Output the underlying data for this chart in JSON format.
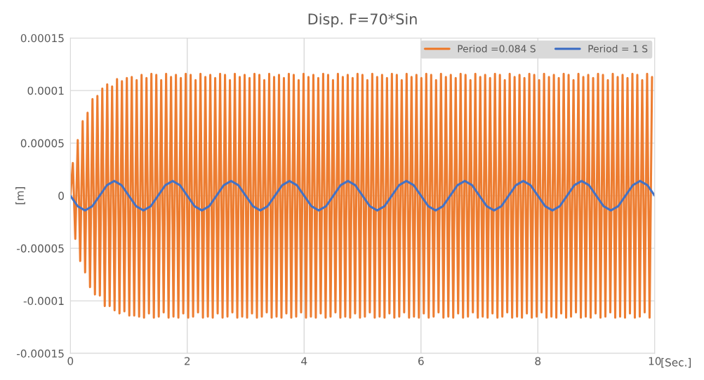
{
  "chart_data": {
    "type": "line",
    "title": "Disp. F=70*Sin",
    "xlabel": "[Sec.]",
    "ylabel": "[m]",
    "xlim": [
      0,
      10
    ],
    "xticks": [
      0,
      2,
      4,
      6,
      8,
      10
    ],
    "ylim": [
      -0.00015,
      0.00015
    ],
    "yticks": [
      {
        "value": -0.00015,
        "label": "-0.00015"
      },
      {
        "value": -0.0001,
        "label": "-0.0001"
      },
      {
        "value": -5e-05,
        "label": "-0.00005"
      },
      {
        "value": 0,
        "label": "0"
      },
      {
        "value": 5e-05,
        "label": "0.00005"
      },
      {
        "value": 0.0001,
        "label": "0.0001"
      },
      {
        "value": 0.00015,
        "label": "0.00015"
      }
    ],
    "grid": true,
    "legend": "top right",
    "marker": "none",
    "line_style": "solid",
    "series": [
      {
        "name": "Period =0.084 S",
        "color": "#ed7d31",
        "x": [
          0,
          0.042,
          0.084,
          0.126,
          0.168,
          0.21,
          0.252,
          0.294,
          0.336,
          0.378,
          0.42,
          0.462,
          0.504,
          0.546,
          0.588,
          0.63,
          0.672,
          0.714,
          0.756,
          0.798,
          0.84,
          0.882,
          0.924,
          0.966,
          1.008,
          1.05,
          1.092,
          1.134,
          1.176,
          1.218,
          1.26,
          1.302,
          1.344,
          1.386,
          1.428,
          1.47,
          1.512,
          1.554,
          1.596,
          1.638,
          1.68,
          1.722,
          1.764,
          1.806,
          1.848,
          1.89,
          1.932,
          1.974,
          2.016,
          2.058,
          2.1,
          2.142,
          2.184,
          2.226,
          2.268,
          2.31,
          2.352,
          2.394,
          2.436,
          2.478,
          2.52,
          2.562,
          2.604,
          2.646,
          2.688,
          2.73,
          2.772,
          2.814,
          2.856,
          2.898,
          2.94,
          2.982,
          3.024,
          3.066,
          3.108,
          3.15,
          3.192,
          3.234,
          3.276,
          3.318,
          3.36,
          3.402,
          3.444,
          3.486,
          3.528,
          3.57,
          3.612,
          3.654,
          3.696,
          3.738,
          3.78,
          3.822,
          3.864,
          3.906,
          3.948,
          3.99,
          4.032,
          4.074,
          4.116,
          4.158,
          4.2,
          4.242,
          4.284,
          4.326,
          4.368,
          4.41,
          4.452,
          4.494,
          4.536,
          4.578,
          4.62,
          4.662,
          4.704,
          4.746,
          4.788,
          4.83,
          4.872,
          4.914,
          4.956,
          4.998,
          5.04,
          5.082,
          5.124,
          5.166,
          5.208,
          5.25,
          5.292,
          5.334,
          5.376,
          5.418,
          5.46,
          5.502,
          5.544,
          5.586,
          5.628,
          5.67,
          5.712,
          5.754,
          5.796,
          5.838,
          5.88,
          5.922,
          5.964,
          6.006,
          6.048,
          6.09,
          6.132,
          6.174,
          6.216,
          6.258,
          6.3,
          6.342,
          6.384,
          6.426,
          6.468,
          6.51,
          6.552,
          6.594,
          6.636,
          6.678,
          6.72,
          6.762,
          6.804,
          6.846,
          6.888,
          6.93,
          6.972,
          7.014,
          7.056,
          7.098,
          7.14,
          7.182,
          7.224,
          7.266,
          7.308,
          7.35,
          7.392,
          7.434,
          7.476,
          7.518,
          7.56,
          7.602,
          7.644,
          7.686,
          7.728,
          7.77,
          7.812,
          7.854,
          7.896,
          7.938,
          7.98,
          8.022,
          8.064,
          8.106,
          8.148,
          8.19,
          8.232,
          8.274,
          8.316,
          8.358,
          8.4,
          8.442,
          8.484,
          8.526,
          8.568,
          8.61,
          8.652,
          8.694,
          8.736,
          8.778,
          8.82,
          8.862,
          8.904,
          8.946,
          8.988,
          9.03,
          9.072,
          9.114,
          9.156,
          9.198,
          9.24,
          9.282,
          9.324,
          9.366,
          9.408,
          9.45,
          9.492,
          9.534,
          9.576,
          9.618,
          9.66,
          9.702,
          9.744,
          9.786,
          9.828,
          9.87,
          9.912,
          9.954
        ],
        "values": [
          0,
          3.1e-05,
          -4.1e-05,
          5.3e-05,
          -6.2e-05,
          7.1e-05,
          -7.3e-05,
          7.9e-05,
          -8.7e-05,
          9.2e-05,
          -9.4e-05,
          9.5e-05,
          -9.5e-05,
          0.000102,
          -0.000105,
          0.000106,
          -0.000105,
          0.000104,
          -0.000109,
          0.000111,
          -0.000112,
          0.000109,
          -0.00011,
          0.000112,
          -0.000114,
          0.000113,
          -0.000114,
          0.00011,
          -0.000115,
          0.000115,
          -0.000116,
          0.000112,
          -0.000112,
          0.000116,
          -0.000116,
          0.000115,
          -0.000115,
          0.00011,
          -0.000111,
          0.000116,
          -0.000116,
          0.000113,
          -0.000115,
          0.000115,
          -0.000116,
          0.000112,
          -0.000112,
          0.000116,
          -0.000116,
          0.000115,
          -0.000115,
          0.00011,
          -0.000111,
          0.000116,
          -0.000116,
          0.000113,
          -0.000115,
          0.000115,
          -0.000116,
          0.000112,
          -0.000112,
          0.000116,
          -0.000116,
          0.000115,
          -0.000115,
          0.00011,
          -0.000111,
          0.000116,
          -0.000116,
          0.000113,
          -0.000115,
          0.000115,
          -0.000116,
          0.000112,
          -0.000112,
          0.000116,
          -0.000116,
          0.000115,
          -0.000115,
          0.00011,
          -0.000111,
          0.000116,
          -0.000116,
          0.000113,
          -0.000115,
          0.000115,
          -0.000116,
          0.000112,
          -0.000112,
          0.000116,
          -0.000116,
          0.000115,
          -0.000115,
          0.00011,
          -0.000111,
          0.000116,
          -0.000116,
          0.000113,
          -0.000115,
          0.000115,
          -0.000116,
          0.000112,
          -0.000112,
          0.000116,
          -0.000116,
          0.000115,
          -0.000115,
          0.00011,
          -0.000111,
          0.000116,
          -0.000116,
          0.000113,
          -0.000115,
          0.000115,
          -0.000116,
          0.000112,
          -0.000112,
          0.000116,
          -0.000116,
          0.000115,
          -0.000115,
          0.00011,
          -0.000111,
          0.000116,
          -0.000116,
          0.000113,
          -0.000115,
          0.000115,
          -0.000116,
          0.000112,
          -0.000112,
          0.000116,
          -0.000116,
          0.000115,
          -0.000115,
          0.00011,
          -0.000111,
          0.000116,
          -0.000116,
          0.000113,
          -0.000115,
          0.000115,
          -0.000116,
          0.000112,
          -0.000112,
          0.000116,
          -0.000116,
          0.000115,
          -0.000115,
          0.00011,
          -0.000111,
          0.000116,
          -0.000116,
          0.000113,
          -0.000115,
          0.000115,
          -0.000116,
          0.000112,
          -0.000112,
          0.000116,
          -0.000116,
          0.000115,
          -0.000115,
          0.00011,
          -0.000111,
          0.000116,
          -0.000116,
          0.000113,
          -0.000115,
          0.000115,
          -0.000116,
          0.000112,
          -0.000112,
          0.000116,
          -0.000116,
          0.000115,
          -0.000115,
          0.00011,
          -0.000111,
          0.000116,
          -0.000116,
          0.000113,
          -0.000115,
          0.000115,
          -0.000116,
          0.000112,
          -0.000112,
          0.000116,
          -0.000116,
          0.000115,
          -0.000115,
          0.00011,
          -0.000111,
          0.000116,
          -0.000116,
          0.000113,
          -0.000115,
          0.000115,
          -0.000116,
          0.000112,
          -0.000112,
          0.000116,
          -0.000116,
          0.000115,
          -0.000115,
          0.00011,
          -0.000111,
          0.000116,
          -0.000116,
          0.000113,
          -0.000115,
          0.000115,
          -0.000116,
          0.000112,
          -0.000112,
          0.000116,
          -0.000116,
          0.000115,
          -0.000115,
          0.00011,
          -0.000111,
          0.000116,
          -0.000116,
          0.000113,
          -0.000115,
          0.000115,
          -0.000116,
          0.000112,
          -0.000112,
          0.000116,
          -0.000116,
          0.000115,
          -0.000115,
          0.00011,
          -0.000111,
          0.000116,
          -0.000116,
          0.000113
        ]
      },
      {
        "name": "Period = 1 S",
        "color": "#4472c4",
        "x": [
          0,
          0.125,
          0.25,
          0.375,
          0.5,
          0.625,
          0.75,
          0.875,
          1,
          1.125,
          1.25,
          1.375,
          1.5,
          1.625,
          1.75,
          1.875,
          2,
          2.125,
          2.25,
          2.375,
          2.5,
          2.625,
          2.75,
          2.875,
          3,
          3.125,
          3.25,
          3.375,
          3.5,
          3.625,
          3.75,
          3.875,
          4,
          4.125,
          4.25,
          4.375,
          4.5,
          4.625,
          4.75,
          4.875,
          5,
          5.125,
          5.25,
          5.375,
          5.5,
          5.625,
          5.75,
          5.875,
          6,
          6.125,
          6.25,
          6.375,
          6.5,
          6.625,
          6.75,
          6.875,
          7,
          7.125,
          7.25,
          7.375,
          7.5,
          7.625,
          7.75,
          7.875,
          8,
          8.125,
          8.25,
          8.375,
          8.5,
          8.625,
          8.75,
          8.875,
          9,
          9.125,
          9.25,
          9.375,
          9.5,
          9.625,
          9.75,
          9.875,
          10
        ],
        "values": [
          0,
          -1e-05,
          -1.4e-05,
          -1e-05,
          0,
          1e-05,
          1.4e-05,
          1e-05,
          0,
          -1e-05,
          -1.4e-05,
          -1e-05,
          0,
          1e-05,
          1.4e-05,
          1e-05,
          0,
          -1e-05,
          -1.4e-05,
          -1e-05,
          0,
          1e-05,
          1.4e-05,
          1e-05,
          0,
          -1e-05,
          -1.4e-05,
          -1e-05,
          0,
          1e-05,
          1.4e-05,
          1e-05,
          0,
          -1e-05,
          -1.4e-05,
          -1e-05,
          0,
          1e-05,
          1.4e-05,
          1e-05,
          0,
          -1e-05,
          -1.4e-05,
          -1e-05,
          0,
          1e-05,
          1.4e-05,
          1e-05,
          0,
          -1e-05,
          -1.4e-05,
          -1e-05,
          0,
          1e-05,
          1.4e-05,
          1e-05,
          0,
          -1e-05,
          -1.4e-05,
          -1e-05,
          0,
          1e-05,
          1.4e-05,
          1e-05,
          0,
          -1e-05,
          -1.4e-05,
          -1e-05,
          0,
          1e-05,
          1.4e-05,
          1e-05,
          0,
          -1e-05,
          -1.4e-05,
          -1e-05,
          0,
          1e-05,
          1.4e-05,
          1e-05,
          0
        ]
      }
    ]
  }
}
